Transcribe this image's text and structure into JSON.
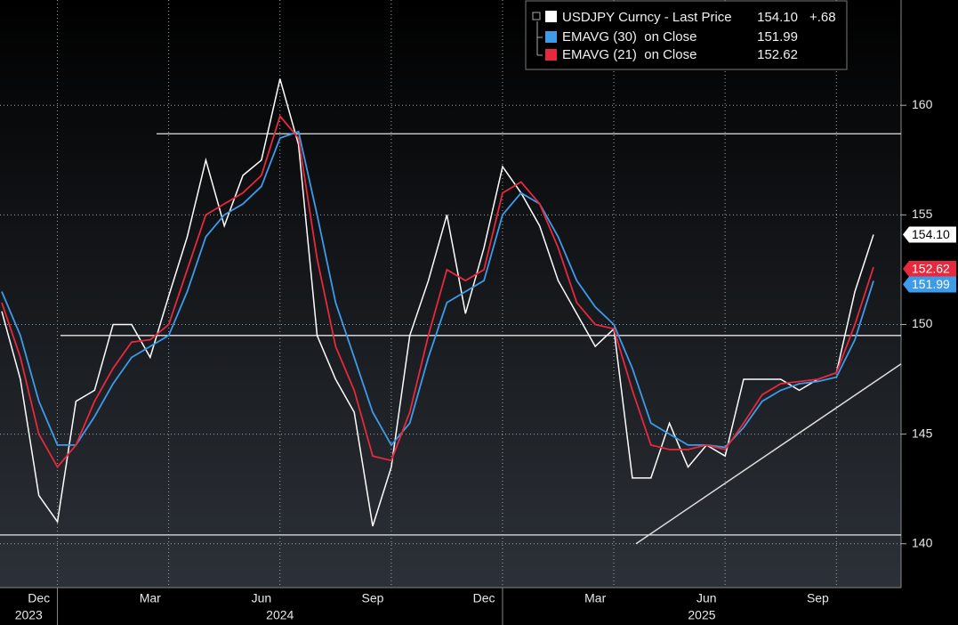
{
  "chart_data": {
    "type": "line",
    "categories": [
      null,
      null,
      "Dec",
      null,
      null,
      null,
      null,
      null,
      "Mar",
      null,
      null,
      null,
      null,
      null,
      "Jun",
      null,
      null,
      null,
      null,
      null,
      "Sep",
      null,
      null,
      null,
      null,
      null,
      "Dec",
      null,
      null,
      null,
      null,
      null,
      "Mar",
      null,
      null,
      null,
      null,
      null,
      "Jun",
      null,
      null,
      null,
      null,
      null,
      "Sep",
      null,
      null,
      null
    ],
    "years": [
      "2023",
      "2024",
      "2025"
    ],
    "series": [
      {
        "name": "USDJPY Curncy - Last Price",
        "color": "#ffffff",
        "last_label": "154.10",
        "change_label": "+.68",
        "values": [
          150.6,
          147.5,
          142.2,
          141.0,
          146.5,
          147.0,
          150.0,
          150.0,
          148.5,
          151.3,
          154.0,
          157.5,
          154.5,
          156.8,
          157.5,
          161.2,
          158.2,
          149.5,
          147.5,
          146.0,
          140.8,
          143.5,
          149.5,
          152.0,
          155.0,
          150.5,
          153.5,
          157.2,
          156.0,
          154.5,
          152.0,
          150.5,
          149.0,
          149.8,
          143.0,
          143.0,
          145.5,
          143.5,
          144.5,
          144.0,
          147.5,
          147.5,
          147.5,
          147.0,
          147.5,
          147.8,
          151.5,
          154.1
        ]
      },
      {
        "name": "EMAVG (30)  on Close",
        "color": "#3d9be9",
        "last_label": "151.99",
        "values": [
          151.5,
          149.5,
          146.5,
          144.5,
          144.5,
          145.8,
          147.3,
          148.5,
          149.0,
          149.5,
          151.5,
          154.0,
          155.0,
          155.5,
          156.3,
          158.5,
          158.8,
          155.0,
          151.0,
          148.5,
          146.0,
          144.5,
          145.5,
          148.5,
          151.0,
          151.5,
          152.0,
          155.0,
          156.0,
          155.5,
          154.0,
          152.0,
          150.8,
          150.0,
          148.0,
          145.5,
          145.0,
          144.5,
          144.5,
          144.4,
          145.3,
          146.5,
          147.0,
          147.3,
          147.4,
          147.6,
          149.3,
          151.99
        ]
      },
      {
        "name": "EMAVG (21)  on Close",
        "color": "#e8283c",
        "last_label": "152.62",
        "values": [
          151.0,
          148.5,
          145.0,
          143.5,
          144.5,
          146.5,
          148.0,
          149.2,
          149.3,
          150.0,
          152.5,
          155.0,
          155.5,
          156.0,
          156.8,
          159.5,
          158.5,
          153.0,
          149.0,
          147.0,
          144.0,
          143.8,
          146.0,
          149.5,
          152.5,
          152.0,
          152.5,
          156.0,
          156.5,
          155.5,
          153.5,
          151.0,
          150.0,
          149.8,
          147.0,
          144.5,
          144.3,
          144.3,
          144.5,
          144.3,
          145.5,
          146.8,
          147.3,
          147.4,
          147.5,
          147.8,
          150.0,
          152.62
        ]
      }
    ],
    "levels": [
      158.7,
      149.5,
      140.4
    ],
    "trendline": [
      140.0,
      148.2
    ],
    "ylim": [
      138,
      164.8
    ],
    "yticks": [
      140,
      145,
      150,
      155,
      160
    ],
    "grid": true
  }
}
